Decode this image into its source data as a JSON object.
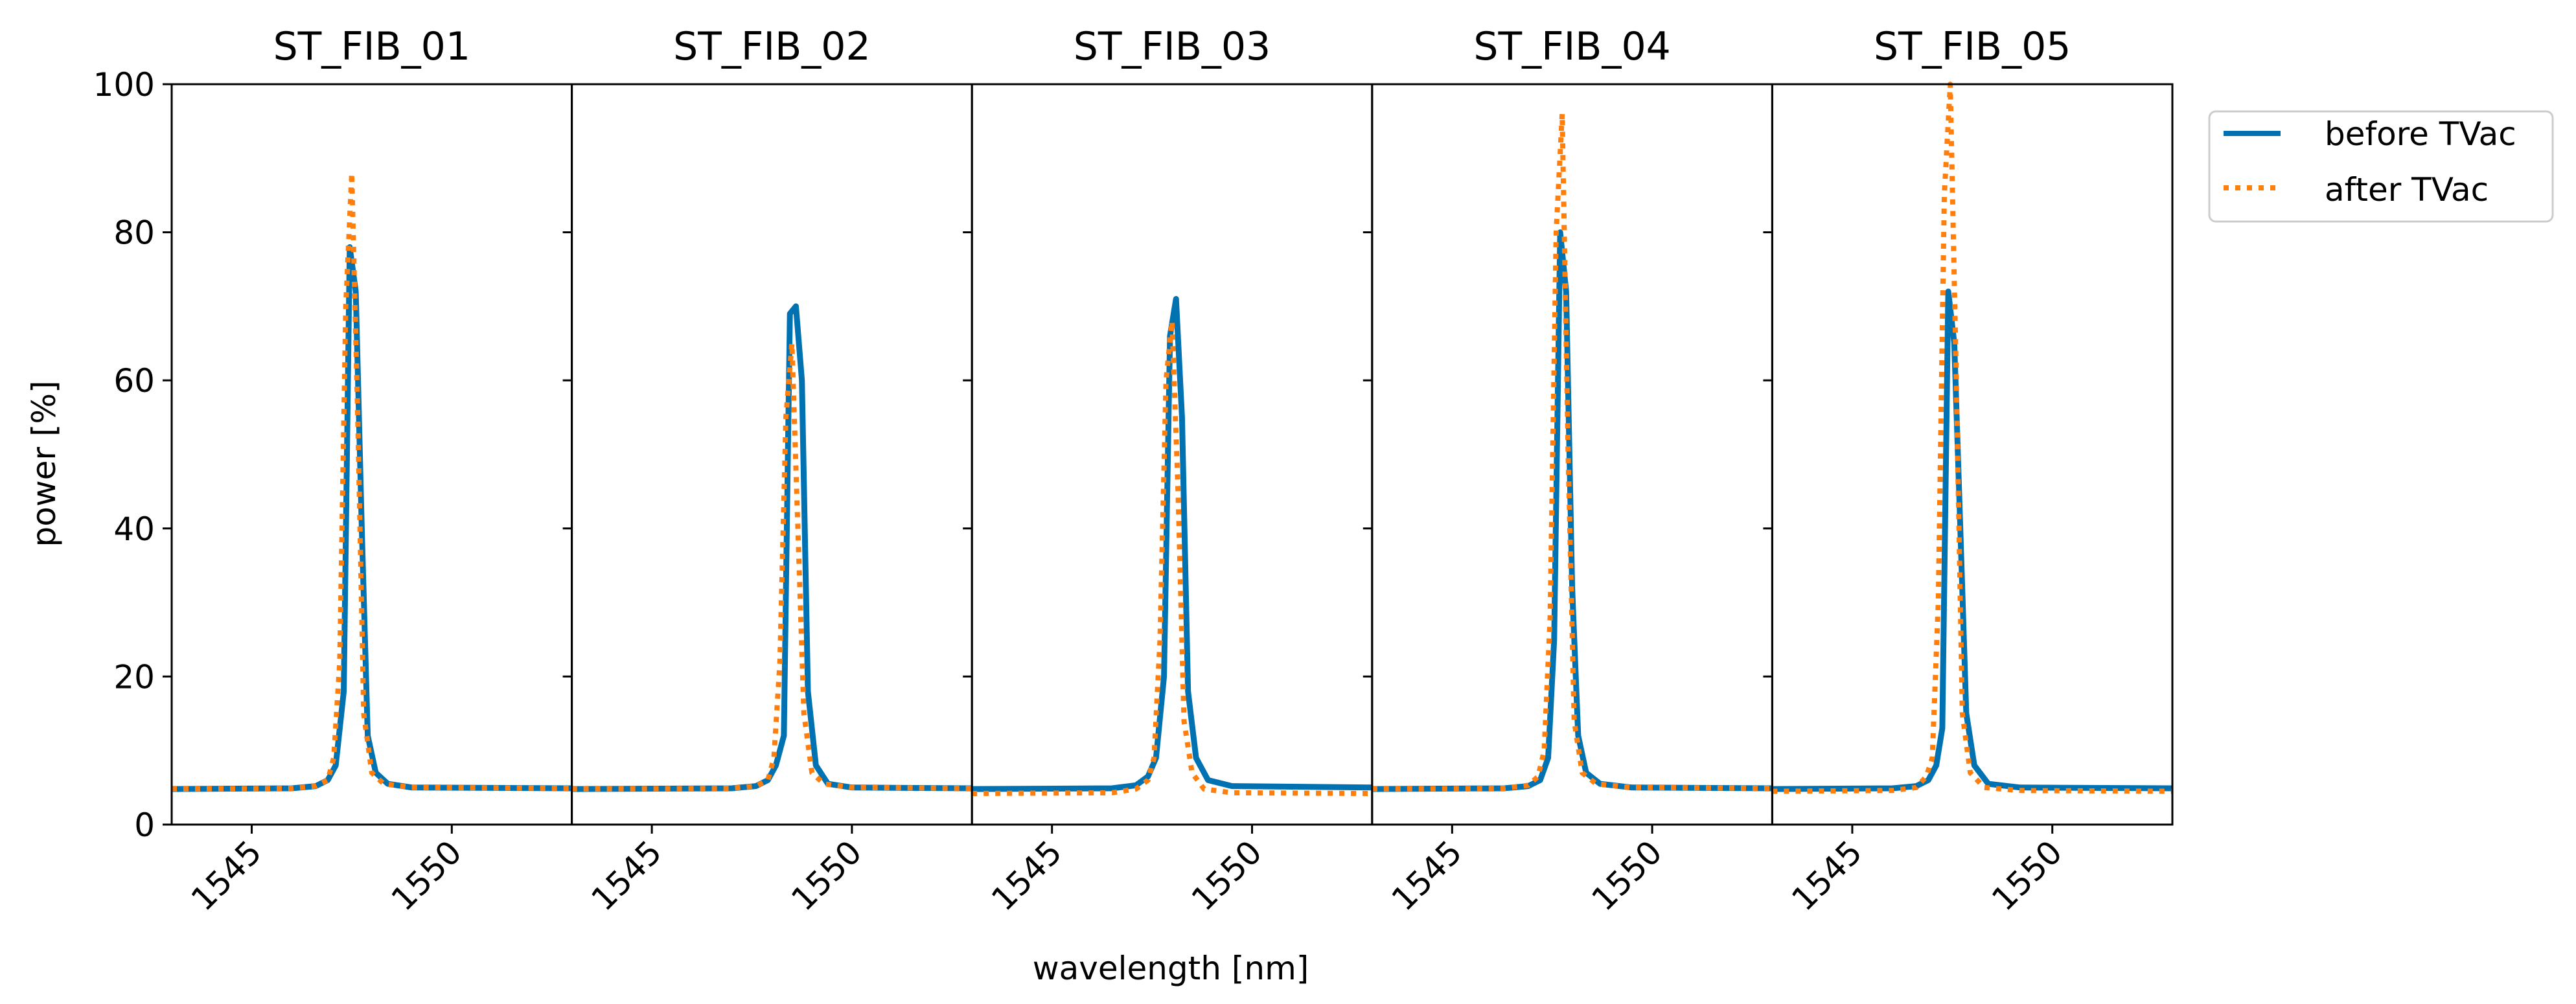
{
  "figure": {
    "ylabel": "power [%]",
    "xlabel": "wavelength [nm]",
    "colors": {
      "before": "#0072B2",
      "after": "#FF7F0E"
    }
  },
  "legend": {
    "placement": "upper-right-outside",
    "entries": [
      "before TVac",
      "after TVac"
    ]
  },
  "chart_data": [
    {
      "type": "line",
      "title": "ST_FIB_01",
      "xlim": [
        1543,
        1553
      ],
      "ylim": [
        0,
        100
      ],
      "xticks": [
        1545,
        1550
      ],
      "yticks": [
        0,
        20,
        40,
        60,
        80,
        100
      ],
      "series": [
        {
          "name": "before TVac",
          "style": "solid",
          "x": [
            1543,
            1546,
            1546.6,
            1546.9,
            1547.1,
            1547.3,
            1547.45,
            1547.6,
            1547.75,
            1547.9,
            1548.1,
            1548.4,
            1549,
            1553
          ],
          "y": [
            4.8,
            4.9,
            5.2,
            6,
            8,
            18,
            78,
            72,
            40,
            12,
            7,
            5.5,
            5,
            4.9
          ]
        },
        {
          "name": "after TVac",
          "style": "dotted",
          "x": [
            1543,
            1546,
            1546.6,
            1546.9,
            1547.05,
            1547.2,
            1547.35,
            1547.5,
            1547.65,
            1547.8,
            1548,
            1548.3,
            1549,
            1553
          ],
          "y": [
            4.8,
            4.9,
            5.2,
            6,
            9,
            22,
            70,
            88,
            55,
            15,
            7,
            5.5,
            5,
            4.9
          ]
        }
      ]
    },
    {
      "type": "line",
      "title": "ST_FIB_02",
      "xlim": [
        1543,
        1553
      ],
      "ylim": [
        0,
        100
      ],
      "xticks": [
        1545,
        1550
      ],
      "yticks": [
        0,
        20,
        40,
        60,
        80,
        100
      ],
      "series": [
        {
          "name": "before TVac",
          "style": "solid",
          "x": [
            1543,
            1547,
            1547.6,
            1547.9,
            1548.1,
            1548.3,
            1548.45,
            1548.6,
            1548.75,
            1548.9,
            1549.1,
            1549.4,
            1550,
            1553
          ],
          "y": [
            4.8,
            4.9,
            5.2,
            6,
            8,
            12,
            69,
            70,
            60,
            18,
            8,
            5.5,
            5,
            4.9
          ]
        },
        {
          "name": "after TVac",
          "style": "dotted",
          "x": [
            1543,
            1547,
            1547.6,
            1547.9,
            1548.05,
            1548.2,
            1548.35,
            1548.5,
            1548.65,
            1548.8,
            1549,
            1549.3,
            1550,
            1553
          ],
          "y": [
            4.8,
            4.9,
            5.2,
            6,
            9,
            22,
            55,
            65,
            40,
            15,
            7,
            5.5,
            5,
            4.9
          ]
        }
      ]
    },
    {
      "type": "line",
      "title": "ST_FIB_03",
      "xlim": [
        1543,
        1553
      ],
      "ylim": [
        0,
        100
      ],
      "xticks": [
        1545,
        1550
      ],
      "yticks": [
        0,
        20,
        40,
        60,
        80,
        100
      ],
      "series": [
        {
          "name": "before TVac",
          "style": "solid",
          "x": [
            1543,
            1546.5,
            1547.1,
            1547.4,
            1547.6,
            1547.8,
            1547.95,
            1548.1,
            1548.25,
            1548.4,
            1548.6,
            1548.9,
            1549.5,
            1553
          ],
          "y": [
            4.8,
            4.9,
            5.3,
            6.5,
            9,
            20,
            66,
            71,
            55,
            18,
            9,
            6,
            5.2,
            5
          ]
        },
        {
          "name": "after TVac",
          "style": "dotted",
          "x": [
            1543,
            1546.5,
            1547.1,
            1547.4,
            1547.55,
            1547.7,
            1547.85,
            1548,
            1548.15,
            1548.3,
            1548.5,
            1548.8,
            1549.5,
            1553
          ],
          "y": [
            4.2,
            4.3,
            4.8,
            6,
            9,
            25,
            60,
            68,
            45,
            14,
            7,
            4.8,
            4.3,
            4.2
          ]
        }
      ]
    },
    {
      "type": "line",
      "title": "ST_FIB_04",
      "xlim": [
        1543,
        1553
      ],
      "ylim": [
        0,
        100
      ],
      "xticks": [
        1545,
        1550
      ],
      "yticks": [
        0,
        20,
        40,
        60,
        80,
        100
      ],
      "series": [
        {
          "name": "before TVac",
          "style": "solid",
          "x": [
            1543,
            1546.3,
            1546.9,
            1547.2,
            1547.4,
            1547.55,
            1547.7,
            1547.85,
            1548,
            1548.15,
            1548.35,
            1548.7,
            1549.5,
            1553
          ],
          "y": [
            4.8,
            4.9,
            5.2,
            6,
            9,
            25,
            80,
            72,
            32,
            12,
            7,
            5.5,
            5,
            4.9
          ]
        },
        {
          "name": "after TVac",
          "style": "dotted",
          "x": [
            1543,
            1546.3,
            1546.9,
            1547.15,
            1547.3,
            1547.45,
            1547.6,
            1547.75,
            1547.9,
            1548.05,
            1548.25,
            1548.6,
            1549.5,
            1553
          ],
          "y": [
            4.8,
            4.9,
            5.3,
            6.5,
            10,
            28,
            80,
            96,
            50,
            14,
            7,
            5.5,
            5,
            4.9
          ]
        }
      ]
    },
    {
      "type": "line",
      "title": "ST_FIB_05",
      "xlim": [
        1543,
        1553
      ],
      "ylim": [
        0,
        100
      ],
      "xticks": [
        1545,
        1550
      ],
      "yticks": [
        0,
        20,
        40,
        60,
        80,
        100
      ],
      "series": [
        {
          "name": "before TVac",
          "style": "solid",
          "x": [
            1543,
            1546,
            1546.6,
            1546.9,
            1547.1,
            1547.25,
            1547.4,
            1547.55,
            1547.7,
            1547.85,
            1548.05,
            1548.4,
            1549.2,
            1553
          ],
          "y": [
            4.8,
            4.9,
            5.2,
            6,
            8,
            13,
            72,
            65,
            40,
            15,
            8,
            5.5,
            5,
            4.9
          ]
        },
        {
          "name": "after TVac",
          "style": "dotted",
          "x": [
            1543,
            1546,
            1546.6,
            1546.85,
            1547,
            1547.15,
            1547.3,
            1547.45,
            1547.6,
            1547.75,
            1547.95,
            1548.3,
            1549.2,
            1553
          ],
          "y": [
            4.5,
            4.6,
            5,
            6.5,
            9,
            30,
            85,
            100,
            60,
            15,
            7,
            5,
            4.6,
            4.5
          ]
        }
      ]
    }
  ]
}
